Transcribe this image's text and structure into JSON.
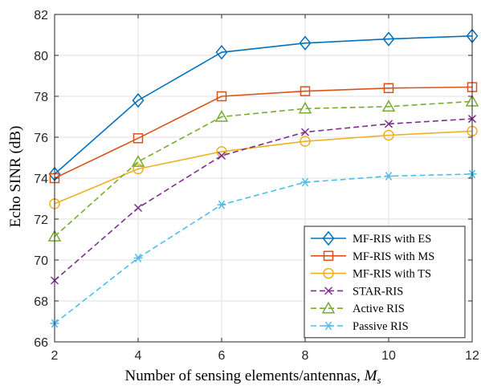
{
  "chart_data": {
    "type": "line",
    "xlabel": "Number of sensing elements/antennas, ",
    "xlabel_math": "M",
    "xlabel_sub": "s",
    "ylabel": "Echo SINR (dB)",
    "xlim": [
      2,
      12
    ],
    "ylim": [
      66,
      82
    ],
    "x_ticks": [
      "2",
      "4",
      "6",
      "8",
      "10",
      "12"
    ],
    "y_ticks": [
      "66",
      "68",
      "70",
      "72",
      "74",
      "76",
      "78",
      "80",
      "82"
    ],
    "grid": true,
    "legend_position": "bottom-right",
    "x": [
      2,
      4,
      6,
      8,
      10,
      12
    ],
    "series": [
      {
        "name": "MF-RIS with ES",
        "values": [
          74.2,
          77.8,
          80.15,
          80.6,
          80.8,
          80.95
        ],
        "color": "#0072BD",
        "marker": "diamond",
        "dash": "solid"
      },
      {
        "name": "MF-RIS with MS",
        "values": [
          74.0,
          75.95,
          78.0,
          78.25,
          78.4,
          78.45
        ],
        "color": "#D95319",
        "marker": "square",
        "dash": "solid"
      },
      {
        "name": "MF-RIS with TS",
        "values": [
          72.75,
          74.45,
          75.3,
          75.8,
          76.1,
          76.3
        ],
        "color": "#EDB120",
        "marker": "circle",
        "dash": "solid"
      },
      {
        "name": "STAR-RIS",
        "values": [
          69.0,
          72.55,
          75.1,
          76.25,
          76.65,
          76.9
        ],
        "color": "#7E2F8E",
        "marker": "x",
        "dash": "dashed"
      },
      {
        "name": "Active RIS",
        "values": [
          71.15,
          74.8,
          77.0,
          77.4,
          77.5,
          77.75
        ],
        "color": "#77AC30",
        "marker": "triangle",
        "dash": "dashed"
      },
      {
        "name": "Passive RIS",
        "values": [
          66.9,
          70.1,
          72.7,
          73.8,
          74.1,
          74.2
        ],
        "color": "#4DBEEE",
        "marker": "asterisk",
        "dash": "dashed"
      }
    ]
  }
}
